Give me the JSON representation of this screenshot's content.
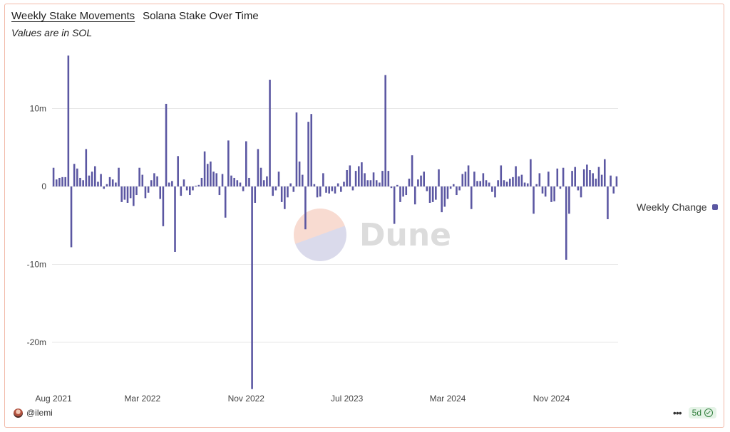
{
  "header": {
    "tabs": [
      {
        "label": "Weekly Stake Movements",
        "active": true
      },
      {
        "label": "Solana Stake Over Time",
        "active": false
      }
    ],
    "subtitle": "Values are in SOL"
  },
  "footer": {
    "user": "@ilemi",
    "menu_icon": "more-dots-icon",
    "badge_label": "5d",
    "badge_icon": "check-circle-icon"
  },
  "watermark": {
    "text": "Dune"
  },
  "colors": {
    "bar": "#5b57a2",
    "grid": "#e7e7e7",
    "card_border": "#f2b9a8",
    "badge_bg": "#e5f3e7",
    "badge_text": "#2f7d3a"
  },
  "chart_data": {
    "type": "bar",
    "legend": {
      "entries": [
        "Weekly Change"
      ],
      "position": "right"
    },
    "series": [
      {
        "name": "Weekly Change",
        "values": [
          2.4,
          0.9,
          1.1,
          1.2,
          1.2,
          16.8,
          -7.8,
          2.9,
          2.3,
          1.1,
          0.8,
          4.8,
          1.4,
          1.9,
          2.6,
          0.6,
          1.6,
          -0.3,
          0.3,
          1.2,
          0.9,
          0.5,
          2.4,
          -2.0,
          -1.7,
          -2.1,
          -1.5,
          -2.5,
          -1.1,
          2.4,
          1.5,
          -1.5,
          -0.8,
          0.8,
          1.7,
          1.3,
          -1.6,
          -5.1,
          10.6,
          0.5,
          0.7,
          -8.4,
          3.9,
          -1.2,
          0.9,
          -0.5,
          -1.1,
          -0.5,
          0.1,
          0.2,
          1.1,
          4.5,
          2.9,
          3.2,
          1.9,
          1.7,
          -1.1,
          1.6,
          -4.0,
          5.9,
          1.4,
          1.1,
          0.8,
          0.5,
          -0.6,
          5.8,
          1.1,
          -26.0,
          -2.1,
          4.8,
          2.4,
          0.8,
          1.3,
          13.7,
          -1.2,
          -0.5,
          1.9,
          -2.0,
          -2.9,
          -1.4,
          0.4,
          -0.7,
          9.5,
          3.2,
          1.5,
          -5.5,
          8.3,
          9.3,
          0.3,
          -1.4,
          -1.3,
          1.7,
          -0.8,
          -0.9,
          -0.6,
          -0.9,
          0.4,
          -0.7,
          0.6,
          2.1,
          2.7,
          -0.5,
          2.0,
          2.6,
          3.1,
          1.7,
          0.8,
          0.8,
          1.8,
          0.8,
          0.5,
          2.0,
          14.3,
          2.0,
          -0.2,
          -4.8,
          0.2,
          -2.0,
          -1.3,
          -1.1,
          1.0,
          4.0,
          -2.3,
          0.9,
          1.4,
          1.9,
          -0.6,
          -2.1,
          -2.0,
          -1.7,
          2.2,
          -3.3,
          -2.6,
          -1.6,
          -0.3,
          0.3,
          -1.1,
          -0.5,
          1.6,
          1.9,
          2.7,
          -2.9,
          1.9,
          0.7,
          0.7,
          1.7,
          0.8,
          0.5,
          -0.7,
          -1.4,
          0.8,
          2.7,
          0.8,
          0.6,
          1.0,
          1.2,
          2.6,
          1.3,
          1.5,
          0.5,
          0.4,
          3.5,
          -3.5,
          0.3,
          1.7,
          -0.9,
          -1.3,
          1.9,
          -2.0,
          -1.9,
          2.3,
          -0.3,
          2.4,
          -9.4,
          -3.5,
          2.0,
          2.5,
          -0.5,
          -1.4,
          2.2,
          2.8,
          2.1,
          1.7,
          1.0,
          2.5,
          1.5,
          3.5,
          -4.2,
          1.4,
          -0.9,
          1.3
        ]
      }
    ],
    "x_ticks": [
      {
        "label": "Aug 2021",
        "index": 0
      },
      {
        "label": "Mar 2022",
        "index": 30
      },
      {
        "label": "Nov 2022",
        "index": 65
      },
      {
        "label": "Jul 2023",
        "index": 99
      },
      {
        "label": "Mar 2024",
        "index": 133
      },
      {
        "label": "Nov 2024",
        "index": 168
      }
    ],
    "y_ticks": [
      {
        "label": "10m",
        "value": 10
      },
      {
        "label": "0",
        "value": 0
      },
      {
        "label": "-10m",
        "value": -10
      },
      {
        "label": "-20m",
        "value": -20
      }
    ],
    "ylim": [
      -26,
      17
    ],
    "grid": true
  }
}
